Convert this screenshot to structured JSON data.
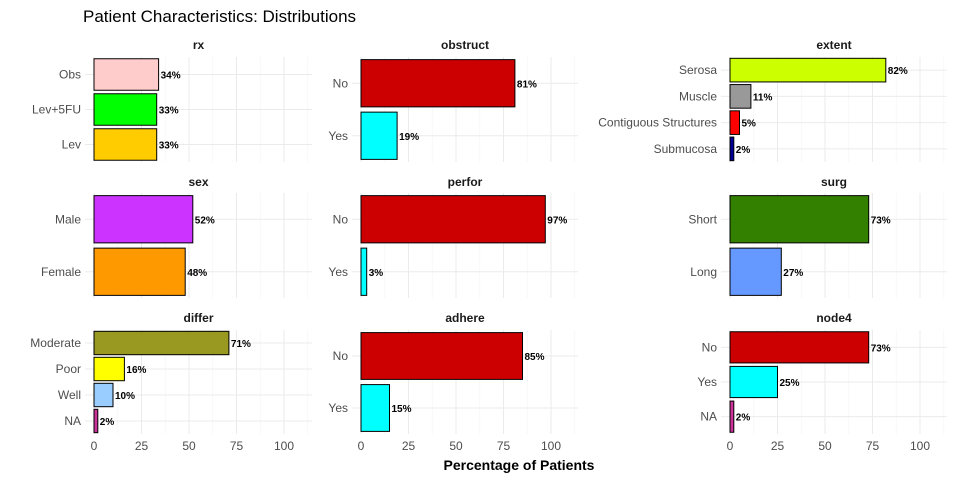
{
  "title": "Patient Characteristics: Distributions",
  "chart_data": {
    "type": "bar",
    "orientation": "horizontal",
    "xlabel": "Percentage of Patients",
    "xlim": [
      0,
      115
    ],
    "x_ticks": [
      0,
      25,
      50,
      75,
      100
    ],
    "grid": true,
    "panels": [
      {
        "name": "rx",
        "categories": [
          "Obs",
          "Lev+5FU",
          "Lev"
        ],
        "values": [
          34,
          33,
          33
        ],
        "labels": [
          "34%",
          "33%",
          "33%"
        ],
        "colors": [
          "#ffcccc",
          "#00ff00",
          "#ffcc00"
        ]
      },
      {
        "name": "obstruct",
        "categories": [
          "No",
          "Yes"
        ],
        "values": [
          81,
          19
        ],
        "labels": [
          "81%",
          "19%"
        ],
        "colors": [
          "#cc0000",
          "#00ffff"
        ]
      },
      {
        "name": "extent",
        "categories": [
          "Serosa",
          "Muscle",
          "Contiguous Structures",
          "Submucosa"
        ],
        "values": [
          82,
          11,
          5,
          2
        ],
        "labels": [
          "82%",
          "11%",
          "5%",
          "2%"
        ],
        "colors": [
          "#ccff00",
          "#999999",
          "#ff0000",
          "#000099"
        ]
      },
      {
        "name": "sex",
        "categories": [
          "Male",
          "Female"
        ],
        "values": [
          52,
          48
        ],
        "labels": [
          "52%",
          "48%"
        ],
        "colors": [
          "#cc33ff",
          "#ff9900"
        ]
      },
      {
        "name": "perfor",
        "categories": [
          "No",
          "Yes"
        ],
        "values": [
          97,
          3
        ],
        "labels": [
          "97%",
          "3%"
        ],
        "colors": [
          "#cc0000",
          "#00ffff"
        ]
      },
      {
        "name": "surg",
        "categories": [
          "Short",
          "Long"
        ],
        "values": [
          73,
          27
        ],
        "labels": [
          "73%",
          "27%"
        ],
        "colors": [
          "#338000",
          "#6699ff"
        ]
      },
      {
        "name": "differ",
        "categories": [
          "Moderate",
          "Poor",
          "Well",
          "NA"
        ],
        "values": [
          71,
          16,
          10,
          2
        ],
        "labels": [
          "71%",
          "16%",
          "10%",
          "2%"
        ],
        "colors": [
          "#999922",
          "#ffff00",
          "#99ccff",
          "#cc3399"
        ]
      },
      {
        "name": "adhere",
        "categories": [
          "No",
          "Yes"
        ],
        "values": [
          85,
          15
        ],
        "labels": [
          "85%",
          "15%"
        ],
        "colors": [
          "#cc0000",
          "#00ffff"
        ]
      },
      {
        "name": "node4",
        "categories": [
          "No",
          "Yes",
          "NA"
        ],
        "values": [
          73,
          25,
          2
        ],
        "labels": [
          "73%",
          "25%",
          "2%"
        ],
        "colors": [
          "#cc0000",
          "#00ffff",
          "#cc3399"
        ]
      }
    ]
  }
}
